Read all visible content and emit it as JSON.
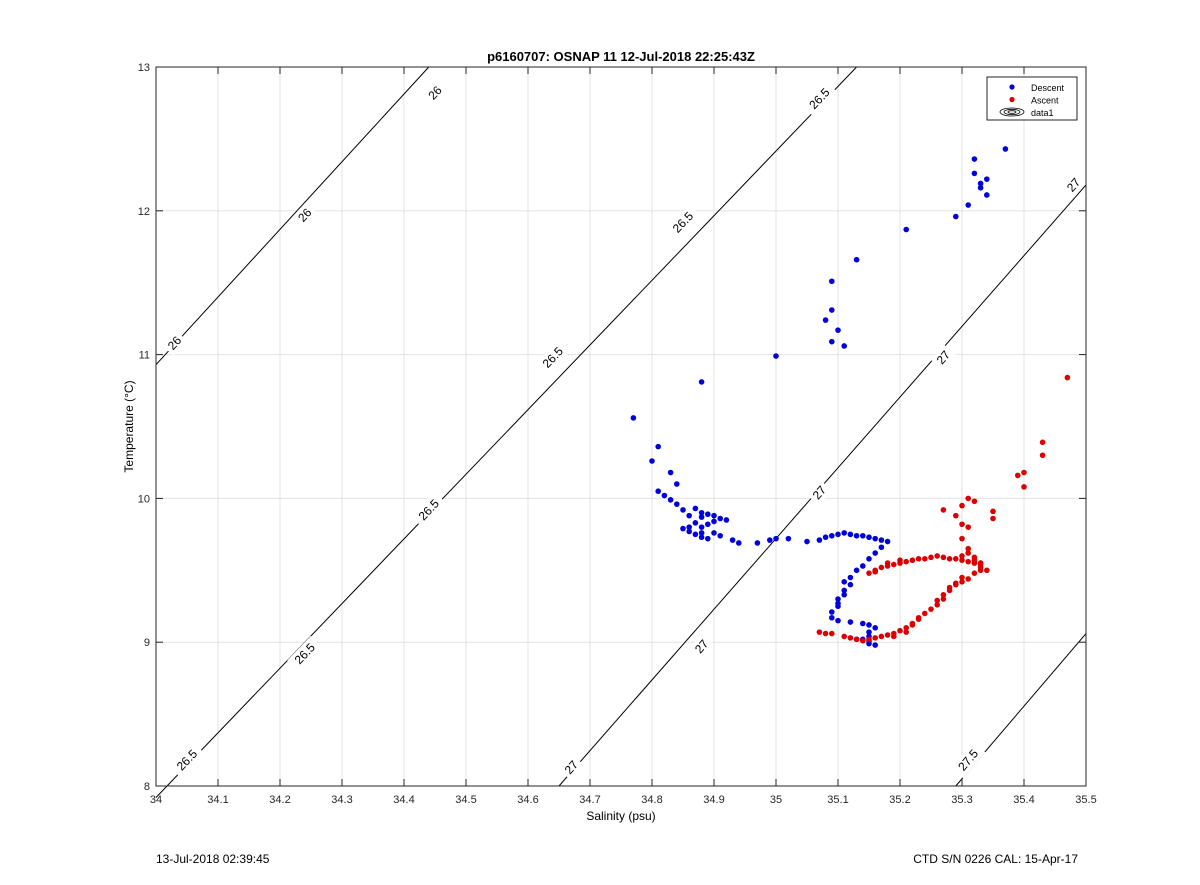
{
  "chart_data": {
    "type": "scatter",
    "title": "p6160707: OSNAP 11 12-Jul-2018 22:25:43Z",
    "xlabel": "Salinity (psu)",
    "ylabel": "Temperature (°C)",
    "xlim": [
      34,
      35.5
    ],
    "ylim": [
      8,
      13
    ],
    "xticks": [
      34,
      34.1,
      34.2,
      34.3,
      34.4,
      34.5,
      34.6,
      34.7,
      34.8,
      34.9,
      35,
      35.1,
      35.2,
      35.3,
      35.4,
      35.5
    ],
    "yticks": [
      8,
      9,
      10,
      11,
      12,
      13
    ],
    "xtick_labels": [
      "34",
      "34.1",
      "34.2",
      "34.3",
      "34.4",
      "34.5",
      "34.6",
      "34.7",
      "34.8",
      "34.9",
      "35",
      "35.1",
      "35.2",
      "35.3",
      "35.4",
      "35.5"
    ],
    "ytick_labels": [
      "8",
      "9",
      "10",
      "11",
      "12",
      "13"
    ],
    "grid": true,
    "legend_position": "top-right",
    "legend": [
      "Descent",
      "Ascent",
      "data1"
    ],
    "contours": [
      {
        "level": "26",
        "points": [
          [
            34.0,
            10.93
          ],
          [
            34.44,
            13.0
          ]
        ],
        "labels": [
          [
            34.03,
            11.08
          ],
          [
            34.24,
            11.97
          ],
          [
            34.45,
            12.82
          ]
        ]
      },
      {
        "level": "26.5",
        "points": [
          [
            34.0,
            7.92
          ],
          [
            35.13,
            13.0
          ]
        ],
        "labels": [
          [
            34.05,
            8.18
          ],
          [
            34.24,
            8.92
          ],
          [
            34.44,
            9.92
          ],
          [
            34.64,
            10.98
          ],
          [
            34.85,
            11.92
          ],
          [
            35.07,
            12.78
          ]
        ]
      },
      {
        "level": "27",
        "points": [
          [
            34.65,
            8.0
          ],
          [
            35.5,
            12.18
          ]
        ],
        "labels": [
          [
            34.67,
            8.13
          ],
          [
            34.88,
            8.97
          ],
          [
            35.07,
            10.04
          ],
          [
            35.27,
            10.98
          ],
          [
            35.48,
            12.18
          ]
        ]
      },
      {
        "level": "27.5",
        "points": [
          [
            35.29,
            8.0
          ],
          [
            35.5,
            9.06
          ]
        ],
        "labels": [
          [
            35.31,
            8.18
          ]
        ]
      }
    ],
    "series": [
      {
        "name": "Descent",
        "color": "#0000dd",
        "points": [
          [
            35.37,
            12.43
          ],
          [
            35.32,
            12.36
          ],
          [
            35.32,
            12.26
          ],
          [
            35.34,
            12.22
          ],
          [
            35.33,
            12.19
          ],
          [
            35.33,
            12.16
          ],
          [
            35.34,
            12.11
          ],
          [
            35.31,
            12.04
          ],
          [
            35.29,
            11.96
          ],
          [
            35.21,
            11.87
          ],
          [
            35.13,
            11.66
          ],
          [
            35.09,
            11.51
          ],
          [
            35.09,
            11.31
          ],
          [
            35.08,
            11.24
          ],
          [
            35.1,
            11.17
          ],
          [
            35.09,
            11.09
          ],
          [
            35.11,
            11.06
          ],
          [
            35.0,
            10.99
          ],
          [
            34.88,
            10.81
          ],
          [
            34.77,
            10.56
          ],
          [
            34.81,
            10.36
          ],
          [
            34.8,
            10.26
          ],
          [
            34.83,
            10.18
          ],
          [
            34.84,
            10.1
          ],
          [
            34.81,
            10.05
          ],
          [
            34.82,
            10.02
          ],
          [
            34.83,
            9.99
          ],
          [
            34.84,
            9.96
          ],
          [
            34.85,
            9.92
          ],
          [
            34.86,
            9.88
          ],
          [
            34.87,
            9.93
          ],
          [
            34.88,
            9.9
          ],
          [
            34.88,
            9.87
          ],
          [
            34.89,
            9.89
          ],
          [
            34.9,
            9.88
          ],
          [
            34.91,
            9.86
          ],
          [
            34.9,
            9.84
          ],
          [
            34.92,
            9.85
          ],
          [
            34.89,
            9.82
          ],
          [
            34.88,
            9.8
          ],
          [
            34.87,
            9.83
          ],
          [
            34.86,
            9.8
          ],
          [
            34.85,
            9.79
          ],
          [
            34.86,
            9.77
          ],
          [
            34.87,
            9.75
          ],
          [
            34.88,
            9.73
          ],
          [
            34.89,
            9.72
          ],
          [
            34.88,
            9.76
          ],
          [
            34.9,
            9.76
          ],
          [
            34.91,
            9.74
          ],
          [
            34.93,
            9.71
          ],
          [
            34.94,
            9.69
          ],
          [
            34.97,
            9.69
          ],
          [
            34.99,
            9.71
          ],
          [
            35.0,
            9.72
          ],
          [
            35.02,
            9.72
          ],
          [
            35.05,
            9.7
          ],
          [
            35.07,
            9.71
          ],
          [
            35.08,
            9.73
          ],
          [
            35.09,
            9.74
          ],
          [
            35.1,
            9.75
          ],
          [
            35.11,
            9.76
          ],
          [
            35.12,
            9.75
          ],
          [
            35.13,
            9.74
          ],
          [
            35.14,
            9.74
          ],
          [
            35.15,
            9.73
          ],
          [
            35.16,
            9.72
          ],
          [
            35.17,
            9.71
          ],
          [
            35.18,
            9.7
          ],
          [
            35.17,
            9.66
          ],
          [
            35.16,
            9.62
          ],
          [
            35.15,
            9.58
          ],
          [
            35.14,
            9.53
          ],
          [
            35.13,
            9.5
          ],
          [
            35.12,
            9.45
          ],
          [
            35.11,
            9.42
          ],
          [
            35.11,
            9.36
          ],
          [
            35.1,
            9.3
          ],
          [
            35.1,
            9.25
          ],
          [
            35.09,
            9.21
          ],
          [
            35.09,
            9.17
          ],
          [
            35.1,
            9.15
          ],
          [
            35.12,
            9.14
          ],
          [
            35.14,
            9.13
          ],
          [
            35.15,
            9.12
          ],
          [
            35.16,
            9.1
          ],
          [
            35.15,
            9.07
          ],
          [
            35.15,
            9.04
          ],
          [
            35.14,
            9.02
          ],
          [
            35.15,
            8.99
          ],
          [
            35.16,
            8.98
          ],
          [
            35.15,
            9.01
          ],
          [
            35.13,
            9.02
          ],
          [
            35.12,
            9.4
          ],
          [
            35.11,
            9.33
          ],
          [
            35.1,
            9.27
          ]
        ]
      },
      {
        "name": "Ascent",
        "color": "#dd0000",
        "points": [
          [
            35.47,
            10.84
          ],
          [
            35.43,
            10.39
          ],
          [
            35.43,
            10.3
          ],
          [
            35.4,
            10.18
          ],
          [
            35.39,
            10.16
          ],
          [
            35.4,
            10.08
          ],
          [
            35.31,
            10.0
          ],
          [
            35.32,
            9.98
          ],
          [
            35.3,
            9.95
          ],
          [
            35.35,
            9.91
          ],
          [
            35.27,
            9.92
          ],
          [
            35.35,
            9.86
          ],
          [
            35.29,
            9.88
          ],
          [
            35.3,
            9.82
          ],
          [
            35.31,
            9.8
          ],
          [
            35.3,
            9.72
          ],
          [
            35.31,
            9.65
          ],
          [
            35.3,
            9.6
          ],
          [
            35.32,
            9.57
          ],
          [
            35.33,
            9.55
          ],
          [
            35.33,
            9.52
          ],
          [
            35.32,
            9.48
          ],
          [
            35.31,
            9.44
          ],
          [
            35.3,
            9.42
          ],
          [
            35.29,
            9.4
          ],
          [
            35.28,
            9.38
          ],
          [
            35.27,
            9.3
          ],
          [
            35.26,
            9.26
          ],
          [
            35.25,
            9.23
          ],
          [
            35.24,
            9.2
          ],
          [
            35.23,
            9.16
          ],
          [
            35.22,
            9.13
          ],
          [
            35.21,
            9.1
          ],
          [
            35.2,
            9.08
          ],
          [
            35.19,
            9.06
          ],
          [
            35.18,
            9.05
          ],
          [
            35.17,
            9.04
          ],
          [
            35.16,
            9.03
          ],
          [
            35.15,
            9.02
          ],
          [
            35.14,
            9.01
          ],
          [
            35.13,
            9.02
          ],
          [
            35.12,
            9.03
          ],
          [
            35.11,
            9.04
          ],
          [
            35.09,
            9.06
          ],
          [
            35.07,
            9.07
          ],
          [
            35.08,
            9.06
          ],
          [
            35.19,
            9.04
          ],
          [
            35.21,
            9.07
          ],
          [
            35.22,
            9.12
          ],
          [
            35.23,
            9.17
          ],
          [
            35.15,
            9.48
          ],
          [
            35.16,
            9.5
          ],
          [
            35.17,
            9.52
          ],
          [
            35.18,
            9.53
          ],
          [
            35.19,
            9.54
          ],
          [
            35.2,
            9.55
          ],
          [
            35.21,
            9.56
          ],
          [
            35.22,
            9.57
          ],
          [
            35.23,
            9.58
          ],
          [
            35.24,
            9.58
          ],
          [
            35.25,
            9.59
          ],
          [
            35.26,
            9.6
          ],
          [
            35.27,
            9.59
          ],
          [
            35.28,
            9.58
          ],
          [
            35.29,
            9.58
          ],
          [
            35.3,
            9.57
          ],
          [
            35.31,
            9.56
          ],
          [
            35.32,
            9.55
          ],
          [
            35.33,
            9.54
          ],
          [
            35.33,
            9.5
          ],
          [
            35.34,
            9.5
          ],
          [
            35.33,
            9.55
          ],
          [
            35.32,
            9.59
          ],
          [
            35.31,
            9.62
          ],
          [
            35.2,
            9.57
          ],
          [
            35.18,
            9.55
          ],
          [
            35.16,
            9.49
          ],
          [
            35.26,
            9.29
          ],
          [
            35.27,
            9.33
          ],
          [
            35.28,
            9.36
          ],
          [
            35.29,
            9.41
          ],
          [
            35.3,
            9.45
          ]
        ]
      }
    ]
  },
  "footer": {
    "left": "13-Jul-2018 02:39:45",
    "right": "CTD S/N 0226  CAL: 15-Apr-17"
  }
}
